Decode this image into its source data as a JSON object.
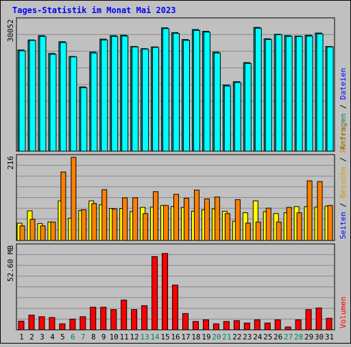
{
  "title": "Tages-Statistik im Monat Mai 2023",
  "colors": {
    "background": "#c0c0c0",
    "title": "#0000ff",
    "files": "#00ffff",
    "files_top": "#00e0c0",
    "hits": "#00a0a0",
    "visits": "#ffff00",
    "pages": "#ff8000",
    "volume": "#ff0000",
    "weekend_label": "#00805c",
    "day_label": "#000000"
  },
  "chart_data": [
    {
      "type": "bar",
      "panel": "requests",
      "ymax_label": "30052",
      "ylim": [
        0,
        30052
      ],
      "right_legend": [
        {
          "text": "Anfragen",
          "color": "#00805c"
        },
        {
          "text": "Dateien",
          "color": "#0000ff"
        }
      ],
      "categories": [
        "1",
        "2",
        "3",
        "4",
        "5",
        "6",
        "7",
        "8",
        "9",
        "10",
        "11",
        "12",
        "13",
        "14",
        "15",
        "16",
        "17",
        "18",
        "19",
        "20",
        "21",
        "22",
        "23",
        "24",
        "25",
        "26",
        "27",
        "28",
        "29",
        "30",
        "31"
      ],
      "series": [
        {
          "name": "Anfragen",
          "values": [
            23300,
            25600,
            26600,
            22500,
            25200,
            21800,
            14800,
            22800,
            25800,
            26600,
            26700,
            24100,
            23600,
            24000,
            28400,
            27300,
            25700,
            28000,
            27600,
            22800,
            15200,
            16000,
            20400,
            28500,
            25900,
            26900,
            26600,
            26500,
            26700,
            27200,
            24100
          ]
        },
        {
          "name": "Dateien",
          "values": [
            23100,
            25500,
            26400,
            22300,
            25000,
            21700,
            14600,
            22600,
            25600,
            26400,
            26500,
            24000,
            23500,
            23900,
            28200,
            27100,
            25500,
            27800,
            27400,
            22600,
            15000,
            15800,
            20200,
            28300,
            25700,
            26800,
            26400,
            26400,
            26500,
            27000,
            24000
          ]
        }
      ]
    },
    {
      "type": "bar",
      "panel": "visits",
      "ymax_label": "216",
      "ylim": [
        0,
        216
      ],
      "right_legend": [
        {
          "text": "Seiten",
          "color": "#0000ff"
        },
        {
          "text": "Besuche",
          "color": "#d0a000"
        },
        {
          "text": "Rechner",
          "color": "#ff8000"
        }
      ],
      "categories": [
        "1",
        "2",
        "3",
        "4",
        "5",
        "6",
        "7",
        "8",
        "9",
        "10",
        "11",
        "12",
        "13",
        "14",
        "15",
        "16",
        "17",
        "18",
        "19",
        "20",
        "21",
        "22",
        "23",
        "24",
        "25",
        "26",
        "27",
        "28",
        "29",
        "30",
        "31"
      ],
      "series": [
        {
          "name": "Besuche",
          "values": [
            45,
            77,
            44,
            48,
            103,
            58,
            78,
            103,
            93,
            83,
            83,
            75,
            86,
            87,
            91,
            88,
            86,
            76,
            80,
            82,
            76,
            50,
            72,
            103,
            75,
            70,
            72,
            88,
            88,
            87,
            89
          ]
        },
        {
          "name": "Seiten",
          "values": [
            38,
            55,
            38,
            48,
            178,
            216,
            80,
            96,
            132,
            82,
            111,
            111,
            70,
            127,
            91,
            120,
            110,
            131,
            108,
            113,
            70,
            106,
            45,
            48,
            84,
            48,
            86,
            72,
            155,
            153,
            91
          ]
        }
      ]
    },
    {
      "type": "bar",
      "panel": "volume",
      "ymax_label": "52.60 MB",
      "ylim": [
        0,
        52.6
      ],
      "right_legend": [
        {
          "text": "Volumen",
          "color": "#ff0000"
        }
      ],
      "categories": [
        "1",
        "2",
        "3",
        "4",
        "5",
        "6",
        "7",
        "8",
        "9",
        "10",
        "11",
        "12",
        "13",
        "14",
        "15",
        "16",
        "17",
        "18",
        "19",
        "20",
        "21",
        "22",
        "23",
        "24",
        "25",
        "26",
        "27",
        "28",
        "29",
        "30",
        "31"
      ],
      "series": [
        {
          "name": "Volumen",
          "values": [
            5.5,
            9.3,
            8.3,
            7.8,
            3.8,
            6.8,
            8.3,
            14.3,
            14.3,
            12.8,
            18.8,
            12.8,
            15.3,
            46.3,
            48.3,
            28.3,
            10.3,
            5.3,
            6.3,
            3.8,
            5.3,
            5.8,
            4.3,
            6.3,
            4.3,
            6.3,
            1.8,
            6.3,
            12.8,
            13.8,
            7.3
          ]
        }
      ]
    }
  ],
  "x_labels": [
    "1",
    "2",
    "3",
    "4",
    "5",
    "6",
    "7",
    "8",
    "9",
    "10",
    "11",
    "12",
    "13",
    "14",
    "15",
    "16",
    "17",
    "18",
    "19",
    "20",
    "21",
    "22",
    "23",
    "24",
    "25",
    "26",
    "27",
    "28",
    "29",
    "30",
    "31"
  ],
  "weekend_days": [
    "6",
    "7",
    "13",
    "14",
    "20",
    "21",
    "27",
    "28"
  ]
}
